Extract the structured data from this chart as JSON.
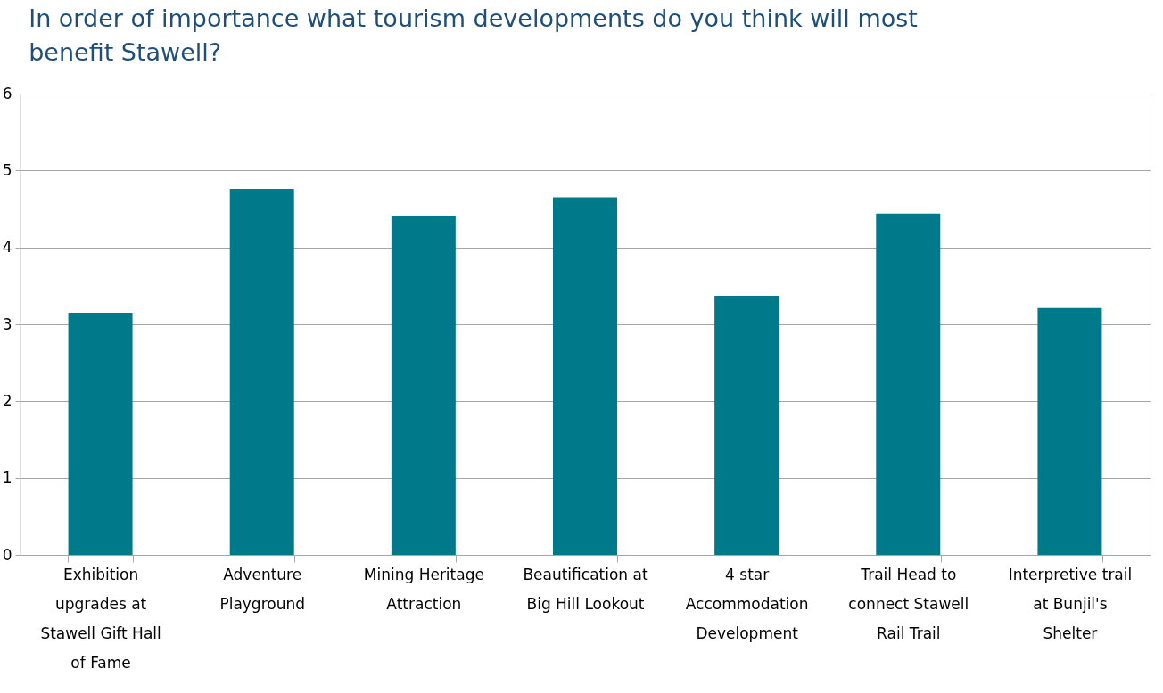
{
  "chart_data": {
    "type": "bar",
    "title": "In order of importance what tourism developments do you think will most benefit Stawell?",
    "categories": [
      "Exhibition upgrades at Stawell Gift Hall of Fame",
      "Adventure Playground",
      "Mining Heritage Attraction",
      "Beautification at Big Hill Lookout",
      "4 star Accommodation Development",
      "Trail Head to connect Stawell Rail Trail",
      "Interpretive trail at Bunjil's Shelter"
    ],
    "values": [
      3.15,
      4.76,
      4.41,
      4.65,
      3.37,
      4.44,
      3.21
    ],
    "color": "#007a8a",
    "ylim": [
      0,
      6
    ],
    "yticks": [
      0,
      1,
      2,
      3,
      4,
      5,
      6
    ],
    "grid": "y"
  }
}
